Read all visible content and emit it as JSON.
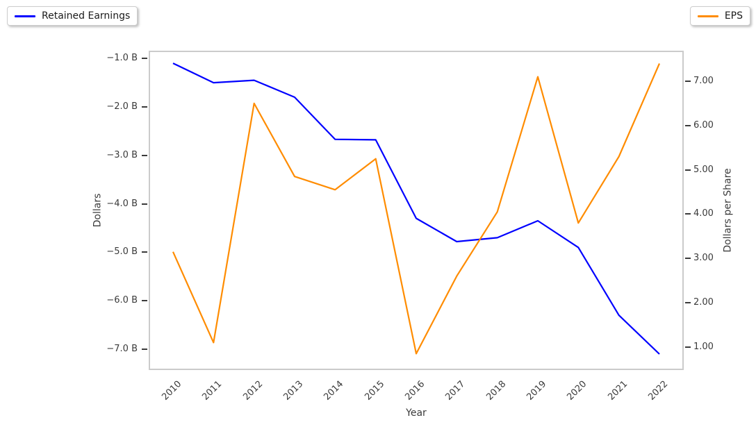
{
  "chart_data": {
    "type": "line",
    "title": "",
    "xlabel": "Year",
    "x": [
      2010,
      2011,
      2012,
      2013,
      2014,
      2015,
      2016,
      2017,
      2018,
      2019,
      2020,
      2021,
      2022
    ],
    "x_tick_labels": [
      "2010",
      "2011",
      "2012",
      "2013",
      "2014",
      "2015",
      "2016",
      "2017",
      "2018",
      "2019",
      "2020",
      "2021",
      "2022"
    ],
    "xlim": [
      2009.4,
      2022.6
    ],
    "left_axis": {
      "label": "Dollars",
      "ylim": [
        -7.43,
        -0.84
      ],
      "ticks": [
        {
          "v": -1.0,
          "label": "−1.0 B"
        },
        {
          "v": -2.0,
          "label": "−2.0 B"
        },
        {
          "v": -3.0,
          "label": "−3.0 B"
        },
        {
          "v": -4.0,
          "label": "−4.0 B"
        },
        {
          "v": -5.0,
          "label": "−5.0 B"
        },
        {
          "v": -6.0,
          "label": "−6.0 B"
        },
        {
          "v": -7.0,
          "label": "−7.0 B"
        }
      ]
    },
    "right_axis": {
      "label": "Dollars per Share",
      "ylim": [
        0.48,
        7.69
      ],
      "ticks": [
        {
          "v": 7.0,
          "label": "7.00"
        },
        {
          "v": 6.0,
          "label": "6.00"
        },
        {
          "v": 5.0,
          "label": "5.00"
        },
        {
          "v": 4.0,
          "label": "4.00"
        },
        {
          "v": 3.0,
          "label": "3.00"
        },
        {
          "v": 2.0,
          "label": "2.00"
        },
        {
          "v": 1.0,
          "label": "1.00"
        }
      ]
    },
    "series": [
      {
        "name": "Retained Earnings",
        "axis": "left",
        "color": "#0000ff",
        "unit": "billions of dollars",
        "values": [
          -1.1,
          -1.5,
          -1.45,
          -1.8,
          -2.67,
          -2.68,
          -4.3,
          -4.78,
          -4.7,
          -4.35,
          -4.9,
          -6.3,
          -7.1
        ]
      },
      {
        "name": "EPS",
        "axis": "right",
        "color": "#ff8c00",
        "unit": "dollars per share",
        "values": [
          3.15,
          1.1,
          6.5,
          4.85,
          4.55,
          5.25,
          0.85,
          2.6,
          4.05,
          7.1,
          3.8,
          5.3,
          7.4
        ]
      }
    ],
    "legend": [
      {
        "label": "Retained Earnings",
        "color": "#0000ff",
        "position": "top-left"
      },
      {
        "label": "EPS",
        "color": "#ff8c00",
        "position": "top-right"
      }
    ],
    "grid": false,
    "background": "#ffffff"
  }
}
